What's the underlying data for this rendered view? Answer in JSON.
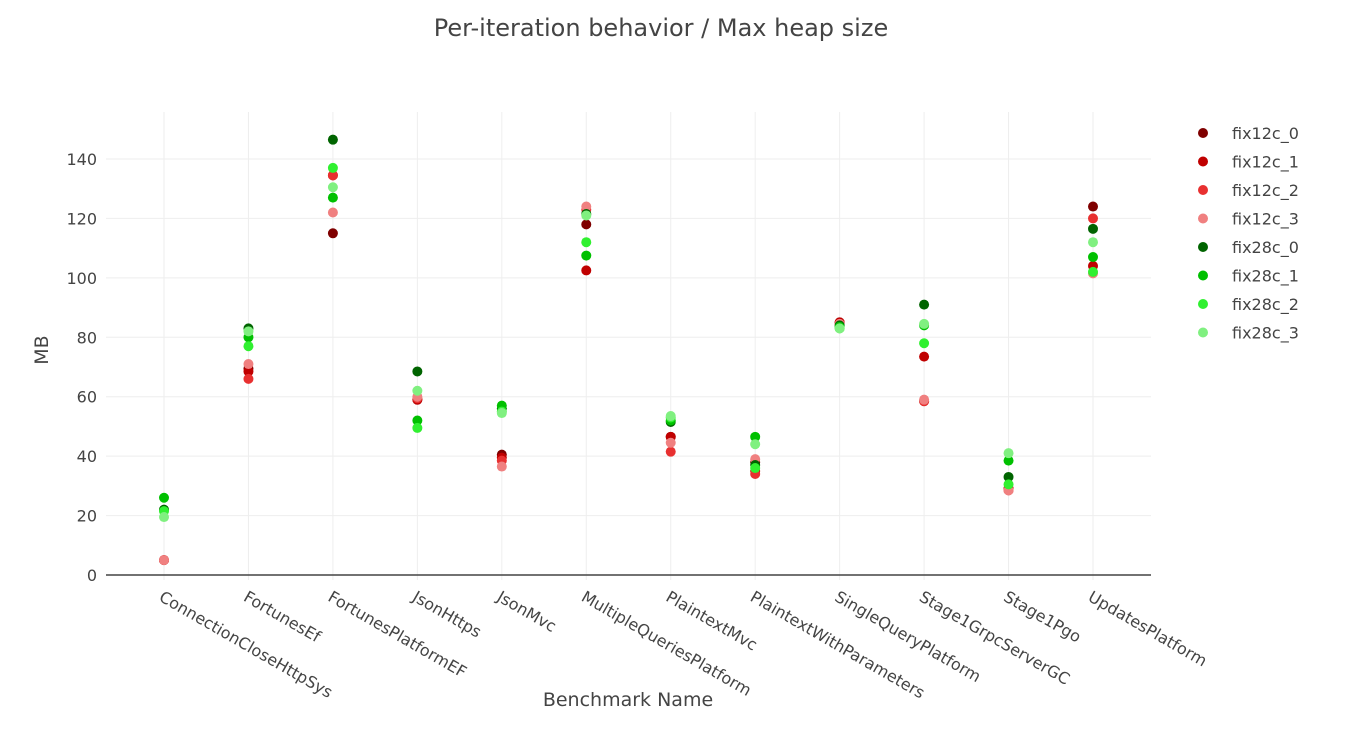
{
  "chart_data": {
    "type": "scatter",
    "title": "Per-iteration behavior / Max heap size",
    "xlabel": "Benchmark Name",
    "ylabel": "MB",
    "ylim": [
      -2,
      157
    ],
    "yticks": [
      0,
      20,
      40,
      60,
      80,
      100,
      120,
      140
    ],
    "grid": true,
    "legend_position": "top-right",
    "categories": [
      "ConnectionCloseHttpSys",
      "FortunesEf",
      "FortunesPlatformEF",
      "JsonHttps",
      "JsonMvc",
      "MultipleQueriesPlatform",
      "PlaintextMvc",
      "PlaintextWithParameters",
      "SingleQueryPlatform",
      "Stage1GrpcServerGC",
      "Stage1Pgo",
      "UpdatesPlatform"
    ],
    "series": [
      {
        "name": "fix12c_0",
        "color": "#7f0000",
        "values": [
          5,
          69.5,
          115,
          59,
          40.5,
          118,
          46.5,
          38,
          85,
          58.5,
          29,
          124
        ]
      },
      {
        "name": "fix12c_1",
        "color": "#c00000",
        "values": [
          5,
          68.5,
          134.5,
          59,
          39.5,
          102.5,
          46.5,
          35,
          85,
          73.5,
          29,
          104
        ]
      },
      {
        "name": "fix12c_2",
        "color": "#e83030",
        "values": [
          5,
          66,
          134.5,
          59.5,
          38.5,
          123,
          41.5,
          34,
          84.5,
          58.5,
          28.5,
          120
        ]
      },
      {
        "name": "fix12c_3",
        "color": "#f08080",
        "values": [
          5,
          71,
          122,
          60,
          36.5,
          124,
          44.5,
          39,
          84.5,
          59,
          28.5,
          101.5
        ]
      },
      {
        "name": "fix28c_0",
        "color": "#006400",
        "values": [
          22,
          83,
          146.5,
          68.5,
          56,
          121.5,
          51.5,
          37,
          84,
          91,
          33,
          116.5
        ]
      },
      {
        "name": "fix28c_1",
        "color": "#00c000",
        "values": [
          26,
          80,
          127,
          52,
          57,
          107.5,
          52,
          46.5,
          83.5,
          84,
          38.5,
          107
        ]
      },
      {
        "name": "fix28c_2",
        "color": "#30f030",
        "values": [
          21.5,
          77,
          137,
          49.5,
          55,
          112,
          53,
          36,
          83,
          78,
          30.5,
          102
        ]
      },
      {
        "name": "fix28c_3",
        "color": "#80f080",
        "values": [
          19.5,
          82,
          130.5,
          62,
          54.5,
          121,
          53.5,
          44,
          83,
          84.5,
          41,
          112
        ]
      }
    ]
  }
}
